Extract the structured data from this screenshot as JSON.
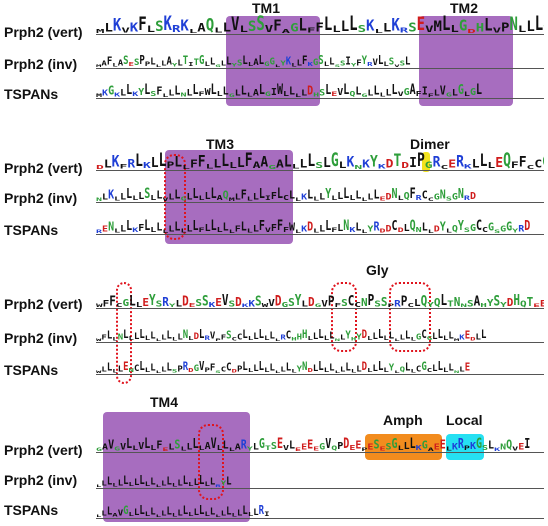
{
  "panels": [
    {
      "rows": [
        "Prph2 (vert)",
        "Prph2 (inv)",
        "TSPANs"
      ],
      "regions": [
        {
          "label": "TM1",
          "kind": "tm"
        },
        {
          "label": "TM2",
          "kind": "tm"
        }
      ]
    },
    {
      "rows": [
        "Prph2 (vert)",
        "Prph2 (inv)",
        "TSPANs"
      ],
      "regions": [
        {
          "label": "TM3",
          "kind": "tm"
        },
        {
          "label": "Dimer",
          "kind": "text"
        }
      ]
    },
    {
      "rows": [
        "Prph2 (vert)",
        "Prph2 (inv)",
        "TSPANs"
      ],
      "regions": [
        {
          "label": "Gly",
          "kind": "text"
        }
      ]
    },
    {
      "rows": [
        "Prph2 (vert)",
        "Prph2 (inv)",
        "TSPANs"
      ],
      "regions": [
        {
          "label": "TM4",
          "kind": "tm"
        },
        {
          "label": "Amph",
          "kind": "amph"
        },
        {
          "label": "Local",
          "kind": "local"
        }
      ]
    }
  ],
  "colors": {
    "tm_region": "#9b59b6",
    "amph_region": "#f28c1e",
    "local_region": "#26e0f2",
    "highlight_circle": "#e0141e",
    "dimer_cys": "#f2e21e",
    "hydrophobic": "#111111",
    "polar": "#2e9e3a",
    "basic": "#1f3fd6",
    "acidic": "#d01c1c"
  },
  "sequence_strings": {
    "p1": [
      "MLKVKFLSKRKLAQLLVLSSVFAGLFFLLLLSKLLKRSEVMLLGDHLVPNLLLTLGLNVLGLCVDSL",
      "MAFLASESPPLLLAYLTITGLLGLLYSLLALGGLYKLLFKGSLLSSIYFYRVLLSVSL",
      "MKGKLLKYLSFLLLNLLFWLLLGLLLALGIWLLLLDHSLEVLQLGLLLLLVGAFIFLVGLGLGL"
    ],
    "p2": [
      "DLKFRLKLLPLLFFLLLLLFAAGALLLLSLGLKNKYKDTDIPGRCERKLLLEQFFCCGNNGFRD",
      "NLKLLLLLSLLVLLGLLLLLAQMLFLLLIFLCLLKLLLYLLLLLLLLEDNLQFRCCGNSGNRD",
      "RENLLLKFLLLLLLLLLFLLLLLFLLLFVFFFWLKDLLLFLNKLLYRDDCDLQNLLDYLQYSGCCGSGGYRD"
    ],
    "p3": [
      "WFFCGLLEYSRYLDESSKEVSDKKSWVDGSYLDGVPFSCCNPSSPRPCLQYQLTNNSAHYSYDHQTEELNLLLRGCREALLLYY",
      "WFLLNLLLLLLLLLLLNLDLRVPFSCCLLLLLLLRCHHHLLLLLNLYHYDLLLLLLLLLGCGLLLLMKEDLL",
      "WLLLLENCLLLLLLSPRDGVPFSCCDPLLLLLLLLLLYNDLLLLLLLLLDLLLLYLQLLCGCLLLLNLE"
    ],
    "p4": [
      "GAVGVLLVLLFELSLLLLAVLLLARYLGTSEVLEEEEGVQPDEEPESESGLLLKGAEELKRPKGSLKNQVEI",
      "LLLLLLLLLLLLLLLLLLLLLLRYL",
      "LLLAVGLLLLLLLLLLLLLLLLLLLLLLLLRI"
    ]
  }
}
